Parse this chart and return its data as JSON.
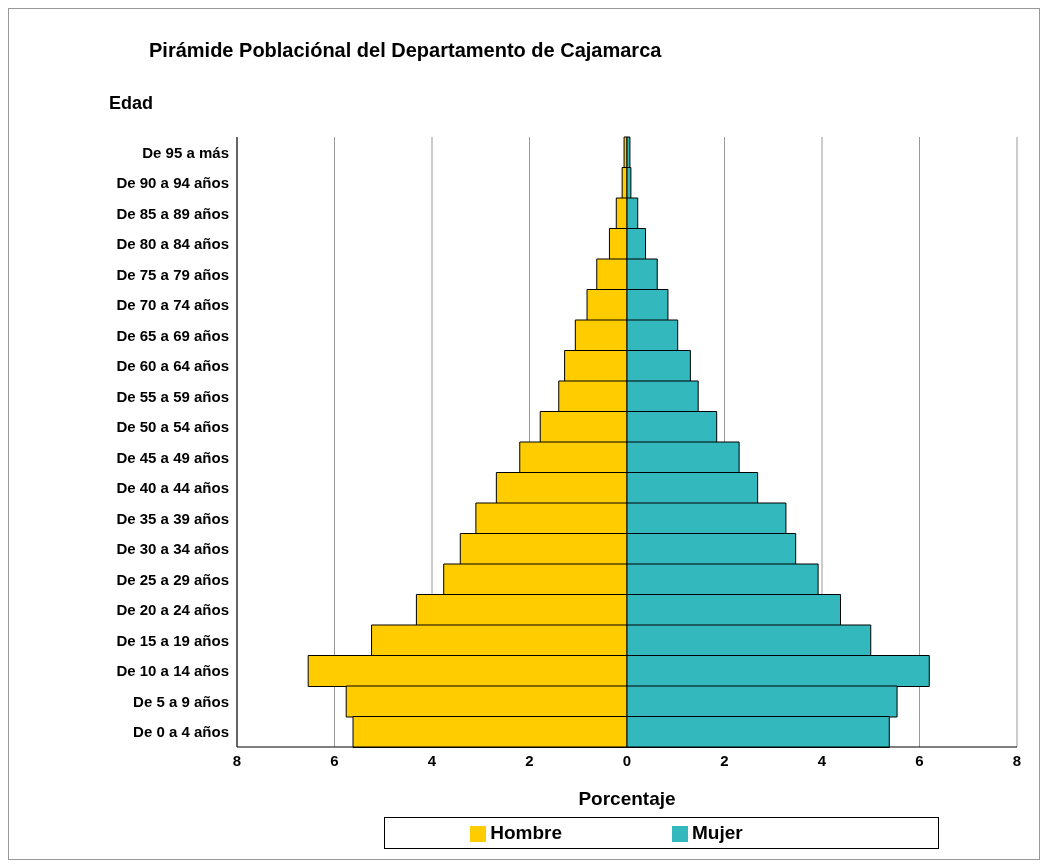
{
  "chart_data": {
    "type": "bar",
    "orientation": "horizontal",
    "stacked": true,
    "title": "Pirámide Poblaciónal del Departamento de Cajamarca",
    "ylabel": "Edad",
    "xlabel": "Porcentaje",
    "categories": [
      "De 95 a más",
      "De 90 a 94 años",
      "De 85 a 89 años",
      "De 80 a 84 años",
      "De 75 a 79 años",
      "De 70 a 74 años",
      "De 65 a 69 años",
      "De 60 a 64 años",
      "De 55 a 59 años",
      "De 50 a 54 años",
      "De 45 a 49 años",
      "De 40 a 44 años",
      "De 35 a 39 años",
      "De 30 a 34 años",
      "De 25 a 29 años",
      "De 20 a 24 años",
      "De 15 a 19 años",
      "De 10 a 14 años",
      "De 5 a 9 años",
      "De 0 a 4 años"
    ],
    "series": [
      {
        "name": "Hombre",
        "color": "#ffcc00",
        "values": [
          -0.06,
          -0.1,
          -0.22,
          -0.36,
          -0.62,
          -0.82,
          -1.06,
          -1.28,
          -1.4,
          -1.78,
          -2.2,
          -2.68,
          -3.1,
          -3.42,
          -3.76,
          -4.32,
          -5.24,
          -6.54,
          -5.76,
          -5.62
        ]
      },
      {
        "name": "Mujer",
        "color": "#33b8bd",
        "values": [
          0.06,
          0.08,
          0.22,
          0.38,
          0.62,
          0.84,
          1.04,
          1.3,
          1.46,
          1.84,
          2.3,
          2.68,
          3.26,
          3.46,
          3.92,
          4.38,
          5.0,
          6.2,
          5.54,
          5.38
        ]
      }
    ],
    "xlim": [
      -8,
      8
    ],
    "xticks": [
      {
        "value": -8,
        "label": "8"
      },
      {
        "value": -6,
        "label": "6"
      },
      {
        "value": -4,
        "label": "4"
      },
      {
        "value": -2,
        "label": "2"
      },
      0,
      2,
      4,
      6,
      8
    ],
    "grid": "x",
    "legend": "bottom"
  }
}
